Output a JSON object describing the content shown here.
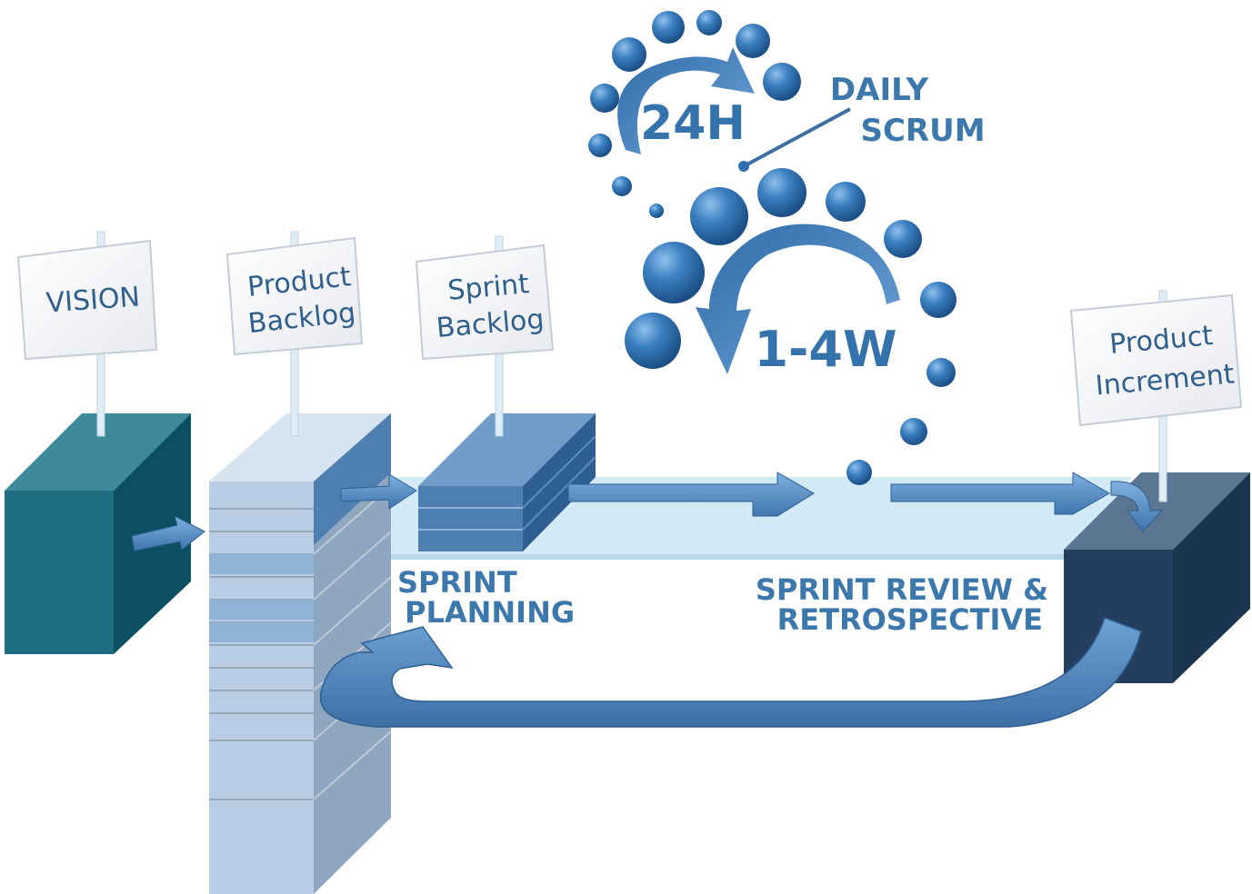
{
  "signs": {
    "vision": "VISION",
    "product_backlog_line1": "Product",
    "product_backlog_line2": "Backlog",
    "sprint_backlog_line1": "Sprint",
    "sprint_backlog_line2": "Backlog",
    "product_increment_line1": "Product",
    "product_increment_line2": "Increment"
  },
  "cycles": {
    "daily": "24H",
    "sprint": "1-4W"
  },
  "labels": {
    "daily_scrum_line1": "DAILY",
    "daily_scrum_line2": "SCRUM",
    "sprint_planning_line1": "SPRINT",
    "sprint_planning_line2": "PLANNING",
    "sprint_review_line1": "SPRINT REVIEW &",
    "sprint_review_line2": "RETROSPECTIVE"
  },
  "colors": {
    "vision_box": "#1f6d80",
    "backlog_column": "#b9cde4",
    "sprint_backlog_stack": "#4e7fb0",
    "increment_box": "#243f5e",
    "arrow": "#5b8fc4",
    "bubble": "#2e6fb0",
    "text": "#3573ad"
  }
}
